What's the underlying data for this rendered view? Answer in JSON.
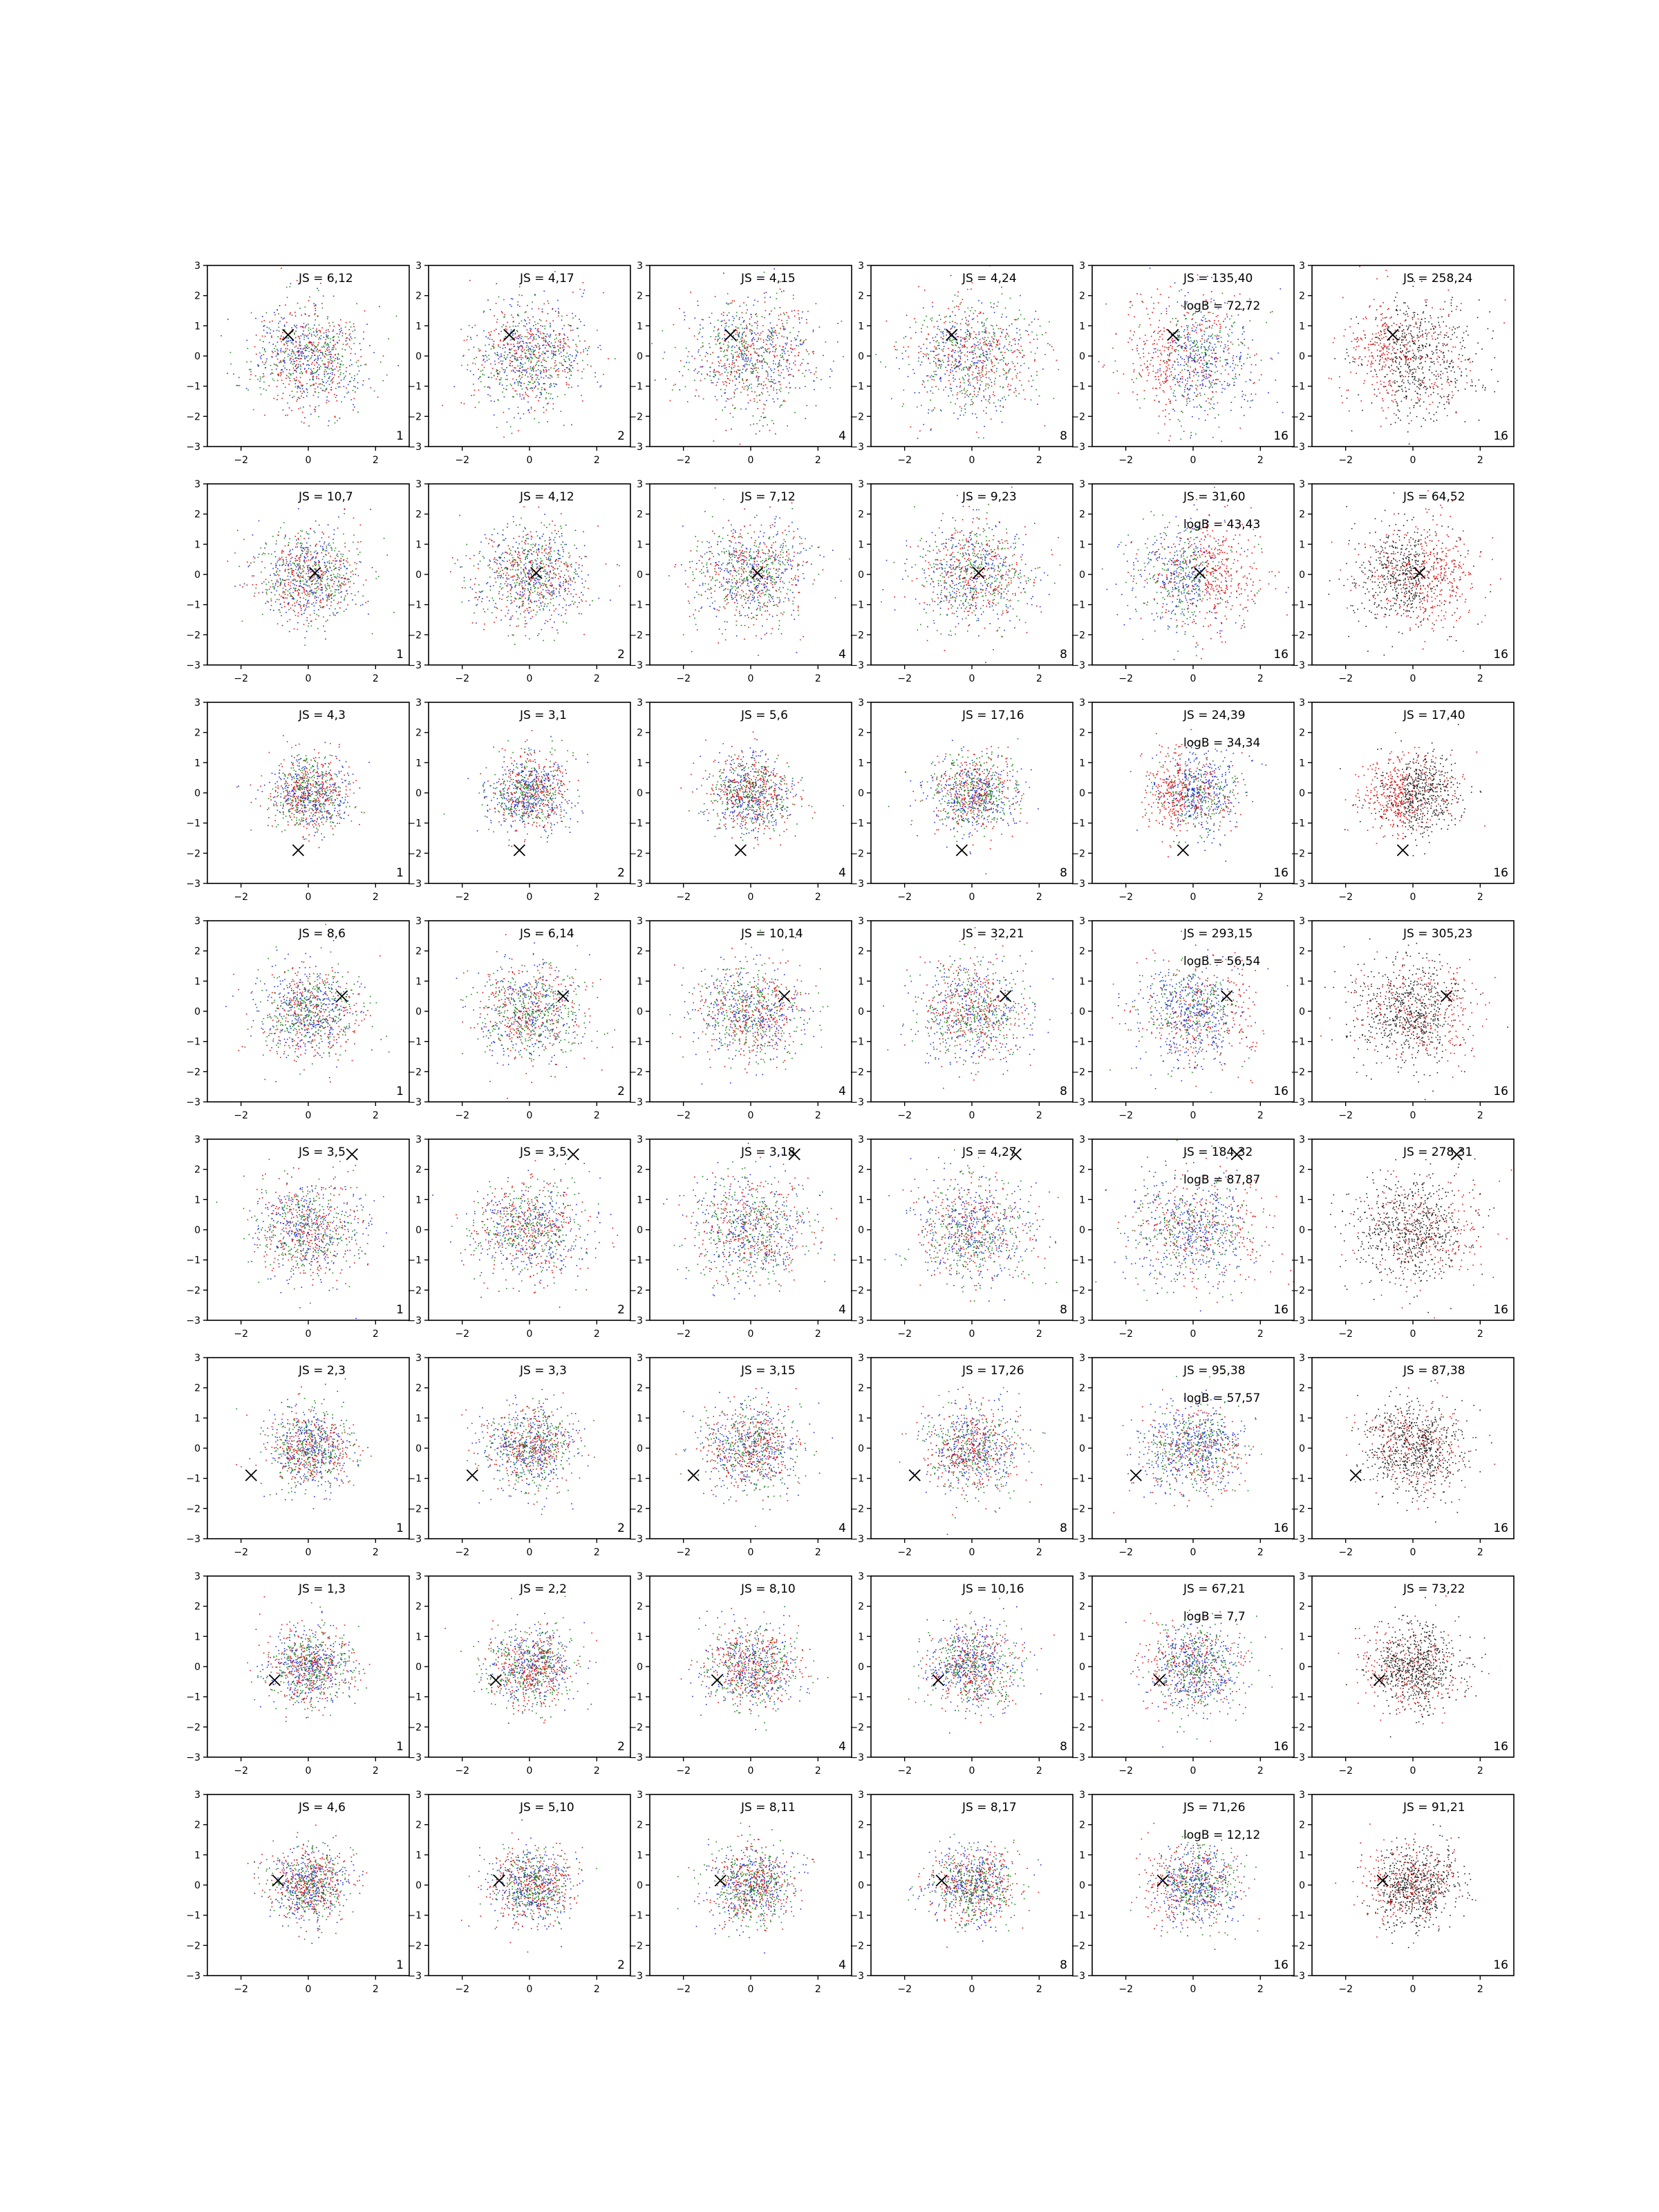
{
  "chart_data": {
    "type": "scatter",
    "grid": false,
    "xlim": [
      -3,
      3
    ],
    "ylim": [
      -3,
      3
    ],
    "x_ticks": [
      -2,
      0,
      2
    ],
    "y_ticks": [
      -3,
      -2,
      -1,
      0,
      1,
      2,
      3
    ],
    "x_tick_labels": [
      "−2",
      "0",
      "2"
    ],
    "y_tick_labels": [
      "−3",
      "−2",
      "−1",
      "0",
      "1",
      "2",
      "3"
    ],
    "column_labels": [
      "1",
      "2",
      "4",
      "8",
      "16",
      "16"
    ],
    "series_colors": {
      "red": "#e41010",
      "green": "#1a8a1a",
      "blue": "#2035d8",
      "black": "#222222"
    },
    "rows": [
      {
        "marker": [
          -0.6,
          0.7
        ],
        "spread": 1.35,
        "js": [
          "JS = 6,12",
          "JS = 4,17",
          "JS = 4,15",
          "JS = 4,24",
          "JS = 135,40",
          "JS = 258,24"
        ],
        "logB": "logB = 72,72"
      },
      {
        "marker": [
          0.2,
          0.05
        ],
        "spread": 1.25,
        "js": [
          "JS = 10,7",
          "JS = 4,12",
          "JS = 7,12",
          "JS = 9,23",
          "JS = 31,60",
          "JS = 64,52"
        ],
        "logB": "logB = 43,43"
      },
      {
        "marker": [
          -0.3,
          -1.9
        ],
        "spread": 0.95,
        "js": [
          "JS = 4,3",
          "JS = 3,1",
          "JS = 5,6",
          "JS = 17,16",
          "JS = 24,39",
          "JS = 17,40"
        ],
        "logB": "logB = 34,34"
      },
      {
        "marker": [
          1.0,
          0.5
        ],
        "spread": 1.2,
        "js": [
          "JS = 8,6",
          "JS = 6,14",
          "JS = 10,14",
          "JS = 32,21",
          "JS = 293,15",
          "JS = 305,23"
        ],
        "logB": "logB = 56,54"
      },
      {
        "marker": [
          1.3,
          2.5
        ],
        "spread": 1.3,
        "js": [
          "JS = 3,5",
          "JS = 3,5",
          "JS = 3,18",
          "JS = 4,27",
          "JS = 184,32",
          "JS = 278,31"
        ],
        "logB": "logB = 87,87"
      },
      {
        "marker": [
          -1.7,
          -0.9
        ],
        "spread": 1.05,
        "js": [
          "JS = 2,3",
          "JS = 3,3",
          "JS = 3,15",
          "JS = 17,26",
          "JS = 95,38",
          "JS = 87,38"
        ],
        "logB": "logB = 57,57"
      },
      {
        "marker": [
          -1.0,
          -0.45
        ],
        "spread": 1.0,
        "js": [
          "JS = 1,3",
          "JS = 2,2",
          "JS = 8,10",
          "JS = 10,16",
          "JS = 67,21",
          "JS = 73,22"
        ],
        "logB": "logB = 7,7"
      },
      {
        "marker": [
          -0.9,
          0.15
        ],
        "spread": 0.95,
        "js": [
          "JS = 4,6",
          "JS = 5,10",
          "JS = 8,11",
          "JS = 8,17",
          "JS = 71,26",
          "JS = 91,21"
        ],
        "logB": "logB = 12,12"
      }
    ]
  }
}
